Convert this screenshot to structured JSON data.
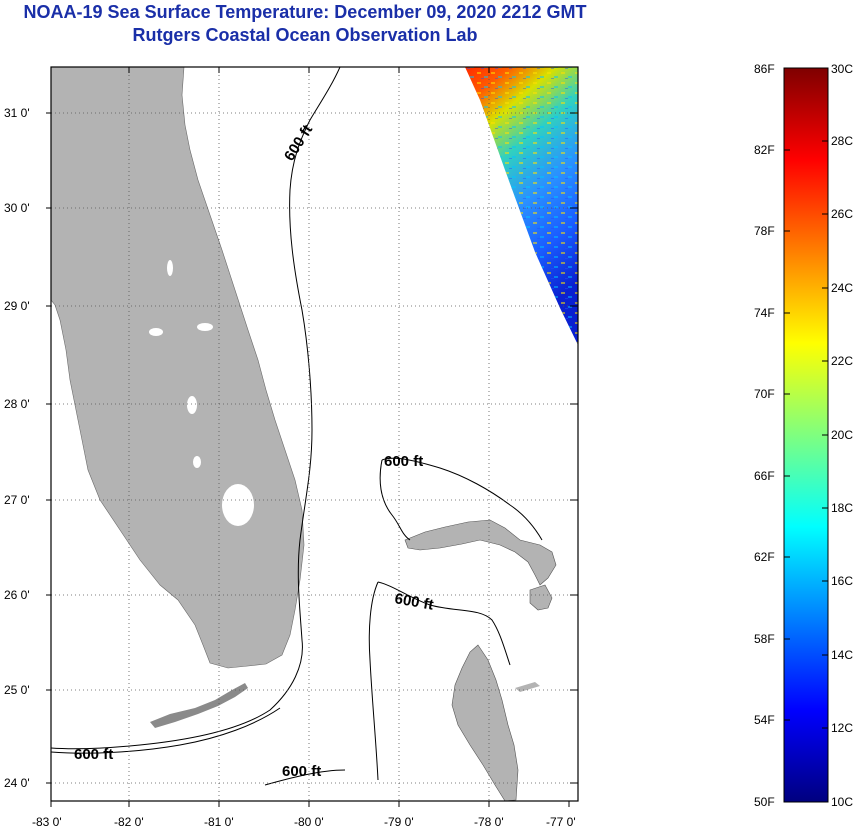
{
  "title": {
    "line1": "NOAA-19 Sea Surface Temperature:  December 09, 2020 2212 GMT",
    "line2": "Rutgers Coastal Ocean Observation Lab"
  },
  "map": {
    "lon_labels": [
      "-83 0'",
      "-82 0'",
      "-81 0'",
      "-80 0'",
      "-79 0'",
      "-78 0'",
      "-77 0'"
    ],
    "lat_labels": [
      "31 0'",
      "30 0'",
      "29 0'",
      "28 0'",
      "27 0'",
      "26 0'",
      "25 0'",
      "24 0'"
    ],
    "contour_label": "600 ft",
    "colors": {
      "land": "#b3b3b3",
      "ocean": "#ffffff",
      "frame": "#000000"
    }
  },
  "colorbar": {
    "f_labels": [
      "86F",
      "82F",
      "78F",
      "74F",
      "70F",
      "66F",
      "62F",
      "58F",
      "54F",
      "50F"
    ],
    "c_labels": [
      "30C",
      "28C",
      "26C",
      "24C",
      "22C",
      "20C",
      "18C",
      "16C",
      "14C",
      "12C",
      "10C"
    ],
    "stops": [
      "#00007f",
      "#0000ff",
      "#007fff",
      "#00ffff",
      "#7fff7f",
      "#ffff00",
      "#ff7f00",
      "#ff0000",
      "#7f0000"
    ]
  }
}
